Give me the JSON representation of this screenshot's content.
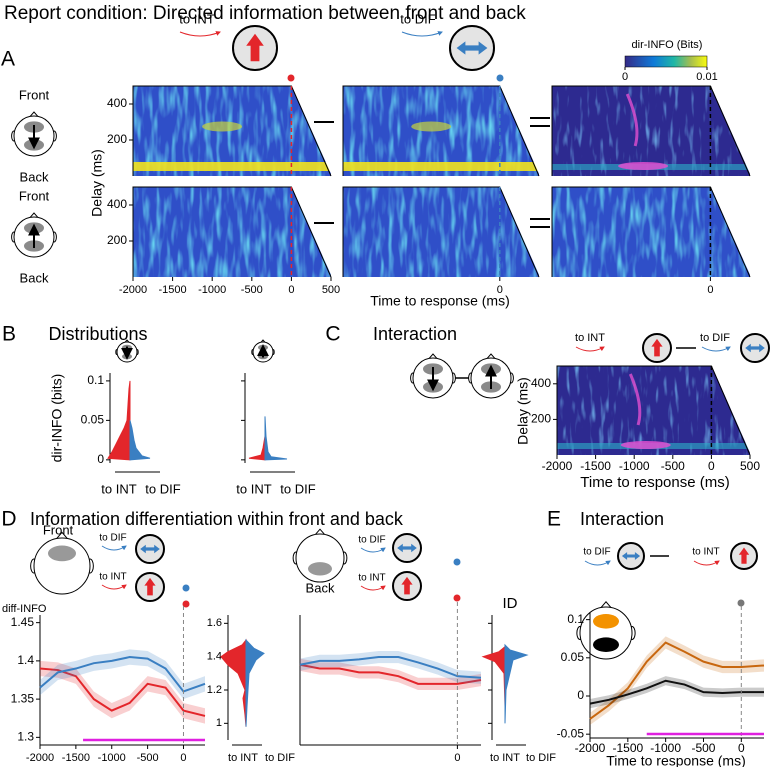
{
  "title": "Report condition: Directed information between front and back",
  "chart_data": [
    {
      "type": "heatmap",
      "panel": "A",
      "cue_labels": [
        "to INT",
        "to DIF"
      ],
      "colorbar": {
        "label": "dir-INFO (Bits)",
        "lim": [
          0,
          0.01
        ],
        "ticks": [
          0,
          0.01
        ]
      },
      "head_labels": [
        "Front",
        "Back"
      ],
      "ylabel": "Delay (ms)",
      "ylim": [
        0,
        500
      ],
      "yticks": [
        200,
        400
      ],
      "xlim": [
        -2000,
        500
      ],
      "xticks": [
        -2000,
        -1500,
        -1000,
        -500,
        0,
        500
      ],
      "xticks_middle": [
        0
      ],
      "xticks_right": [
        0
      ],
      "xlabel": "Time to response (ms)"
    },
    {
      "type": "violin",
      "panel": "B",
      "title": "Distributions",
      "ylabel": "dir-INFO (bits)",
      "ylim": [
        -0.004,
        0.11
      ],
      "yticks": [
        0,
        0.05,
        0.1
      ],
      "categories": [
        "to INT",
        "to DIF"
      ],
      "colors": [
        "#e3262b",
        "#3a7fc2"
      ]
    },
    {
      "type": "heatmap",
      "panel": "C",
      "title": "Interaction",
      "cue_labels": [
        "to INT",
        "to DIF"
      ],
      "ylabel": "Delay (ms)",
      "ylim": [
        0,
        500
      ],
      "yticks": [
        200,
        400
      ],
      "xlim": [
        -2000,
        500
      ],
      "xticks": [
        -2000,
        -1500,
        -1000,
        -500,
        0,
        500
      ],
      "xlabel": "Time to response (ms)"
    },
    {
      "type": "line",
      "panel": "D",
      "title": "Information differentiation within front and back",
      "head_labels": [
        "Front",
        "Back"
      ],
      "cue_labels": [
        "to DIF",
        "to INT"
      ],
      "ylabel": "diff-INFO",
      "xlim": [
        -2000,
        300
      ],
      "ylim": [
        1.29,
        1.46
      ],
      "yticks": [
        1.3,
        1.35,
        1.4,
        1.45
      ],
      "xticks": [
        -2000,
        -1500,
        -1000,
        -500,
        0
      ],
      "back_xticks": [
        0
      ],
      "x": [
        -2000,
        -1750,
        -1500,
        -1250,
        -1000,
        -750,
        -500,
        -250,
        0,
        300
      ],
      "series": [
        {
          "name": "to INT",
          "color": "#e3262b",
          "error": 0.01,
          "values": [
            1.39,
            1.388,
            1.38,
            1.35,
            1.335,
            1.345,
            1.37,
            1.365,
            1.335,
            1.328
          ]
        },
        {
          "name": "to DIF",
          "color": "#3a7fc2",
          "error": 0.01,
          "values": [
            1.365,
            1.385,
            1.39,
            1.397,
            1.4,
            1.405,
            1.403,
            1.39,
            1.36,
            1.37
          ]
        }
      ],
      "back_series": [
        {
          "name": "to INT",
          "color": "#e3262b",
          "error": 0.008,
          "values": [
            1.395,
            1.39,
            1.39,
            1.385,
            1.385,
            1.38,
            1.37,
            1.37,
            1.37,
            1.375
          ]
        },
        {
          "name": "to DIF",
          "color": "#3a7fc2",
          "error": 0.008,
          "values": [
            1.395,
            1.4,
            1.4,
            1.402,
            1.405,
            1.405,
            1.398,
            1.39,
            1.38,
            1.378
          ]
        }
      ],
      "significance": [
        -1400,
        300
      ],
      "significance_color": "#e020e0",
      "inset": {
        "ylim": [
          0.9,
          1.65
        ],
        "yticks": [
          1,
          1.2,
          1.4,
          1.6
        ]
      },
      "back_inset_label": "ID"
    },
    {
      "type": "line",
      "panel": "E",
      "title": "Interaction",
      "cue_labels": [
        "to DIF",
        "to INT"
      ],
      "xlim": [
        -2000,
        300
      ],
      "ylim": [
        -0.055,
        0.11
      ],
      "yticks": [
        -0.05,
        0,
        0.05,
        0.1
      ],
      "xticks": [
        -2000,
        -1500,
        -1000,
        -500,
        0
      ],
      "xlabel": "Time to response (ms)",
      "x": [
        -2000,
        -1750,
        -1500,
        -1250,
        -1000,
        -750,
        -500,
        -250,
        0,
        300
      ],
      "series": [
        {
          "color": "#c8670f",
          "error": 0.008,
          "values": [
            -0.03,
            -0.012,
            0.01,
            0.045,
            0.07,
            0.058,
            0.045,
            0.038,
            0.038,
            0.04
          ]
        },
        {
          "color": "#111111",
          "error": 0.006,
          "values": [
            -0.01,
            -0.005,
            0.002,
            0.01,
            0.02,
            0.015,
            0.005,
            0.004,
            0.005,
            0.005
          ]
        }
      ],
      "significance": [
        -1250,
        300
      ],
      "significance_color": "#e020e0"
    }
  ]
}
